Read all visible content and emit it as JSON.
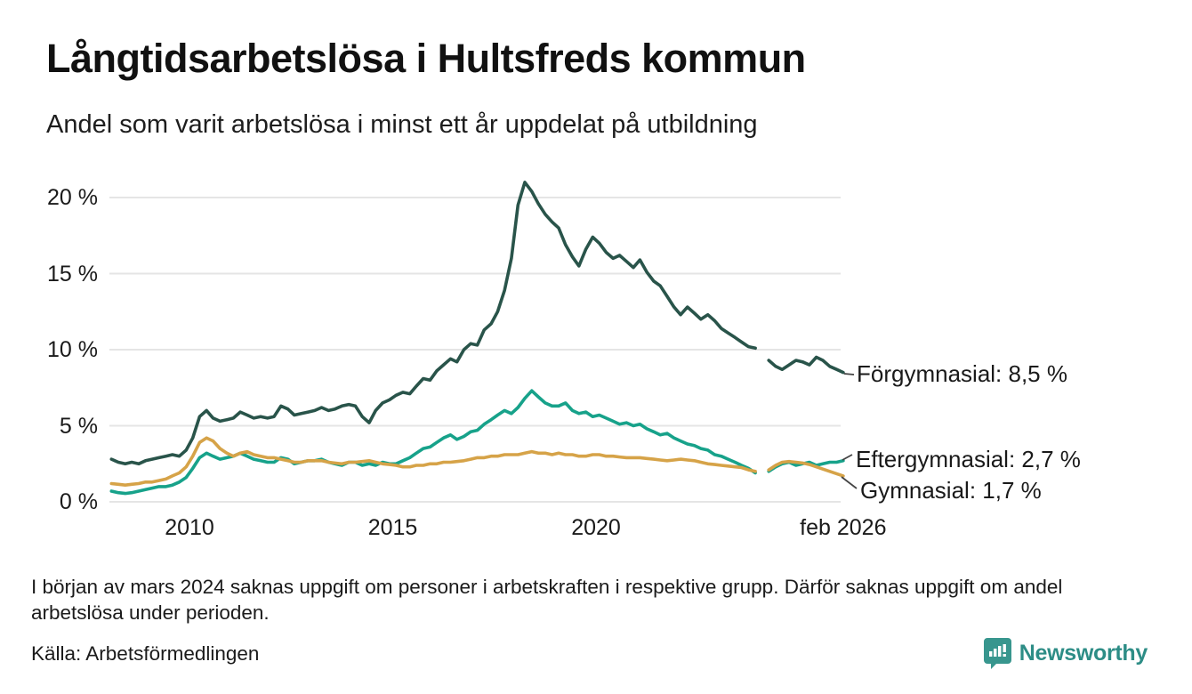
{
  "header": {
    "title": "Långtidsarbetslösa i Hultsfreds kommun",
    "subtitle": "Andel som varit arbetslösa i minst ett år uppdelat på utbildning"
  },
  "footer": {
    "note": "I början av mars 2024 saknas uppgift om personer i arbetskraften i respektive grupp. Därför saknas uppgift om andel arbetslösa under perioden.",
    "source": "Källa: Arbetsförmedlingen",
    "brand": "Newsworthy"
  },
  "colors": {
    "forgymnasial": "#29544a",
    "eftergymnasial": "#17a28a",
    "gymnasial": "#d6a348",
    "grid": "#e5e5e5",
    "connector": "#444444",
    "brand_teal": "#38968e",
    "brand_text": "#2d8d86"
  },
  "chart_data": {
    "type": "line",
    "title": "Långtidsarbetslösa i Hultsfreds kommun",
    "subtitle": "Andel som varit arbetslösa i minst ett år uppdelat på utbildning",
    "grid": "horizontal-only",
    "legend_position": "right-end-annotations",
    "note": "Gap in all series around mars 2024 (missing data)",
    "y_axis": {
      "unit": "%",
      "min": 0,
      "max": 21.5,
      "ticks": [
        {
          "value": 0,
          "label": "0 %"
        },
        {
          "value": 5,
          "label": "5 %"
        },
        {
          "value": 10,
          "label": "10 %"
        },
        {
          "value": 15,
          "label": "15 %"
        },
        {
          "value": 20,
          "label": "20 %"
        }
      ]
    },
    "x_axis": {
      "range_years": [
        2008.08,
        2026.08
      ],
      "ticks": [
        {
          "value": 2010,
          "label": "2010"
        },
        {
          "value": 2015,
          "label": "2015"
        },
        {
          "value": 2020,
          "label": "2020"
        },
        {
          "value": 2026.08,
          "label": "feb 2026"
        }
      ]
    },
    "x": [
      2008.08,
      2008.25,
      2008.42,
      2008.58,
      2008.75,
      2008.92,
      2009.08,
      2009.25,
      2009.42,
      2009.58,
      2009.75,
      2009.92,
      2010.08,
      2010.25,
      2010.42,
      2010.58,
      2010.75,
      2010.92,
      2011.08,
      2011.25,
      2011.42,
      2011.58,
      2011.75,
      2011.92,
      2012.08,
      2012.25,
      2012.42,
      2012.58,
      2012.75,
      2012.92,
      2013.08,
      2013.25,
      2013.42,
      2013.58,
      2013.75,
      2013.92,
      2014.08,
      2014.25,
      2014.42,
      2014.58,
      2014.75,
      2014.92,
      2015.08,
      2015.25,
      2015.42,
      2015.58,
      2015.75,
      2015.92,
      2016.08,
      2016.25,
      2016.42,
      2016.58,
      2016.75,
      2016.92,
      2017.08,
      2017.25,
      2017.42,
      2017.58,
      2017.75,
      2017.92,
      2018.08,
      2018.25,
      2018.42,
      2018.58,
      2018.75,
      2018.92,
      2019.08,
      2019.25,
      2019.42,
      2019.58,
      2019.75,
      2019.92,
      2020.08,
      2020.25,
      2020.42,
      2020.58,
      2020.75,
      2020.92,
      2021.08,
      2021.25,
      2021.42,
      2021.58,
      2021.75,
      2021.92,
      2022.08,
      2022.25,
      2022.42,
      2022.58,
      2022.75,
      2022.92,
      2023.08,
      2023.25,
      2023.42,
      2023.58,
      2023.75,
      2023.92,
      2024.08,
      2024.25,
      2024.42,
      2024.58,
      2024.75,
      2024.92,
      2025.08,
      2025.25,
      2025.42,
      2025.58,
      2025.75,
      2025.92,
      2026.08
    ],
    "series": [
      {
        "name": "Förgymnasial",
        "end_label": "Förgymnasial: 8,5 %",
        "end_value_text": "8,5 %",
        "color": "#29544a",
        "values": [
          2.8,
          2.6,
          2.5,
          2.6,
          2.5,
          2.7,
          2.8,
          2.9,
          3.0,
          3.1,
          3.0,
          3.4,
          4.2,
          5.6,
          6.0,
          5.5,
          5.3,
          5.4,
          5.5,
          5.9,
          5.7,
          5.5,
          5.6,
          5.5,
          5.6,
          6.3,
          6.1,
          5.7,
          5.8,
          5.9,
          6.0,
          6.2,
          6.0,
          6.1,
          6.3,
          6.4,
          6.3,
          5.6,
          5.2,
          6.0,
          6.5,
          6.7,
          7.0,
          7.2,
          7.1,
          7.6,
          8.1,
          8.0,
          8.6,
          9.0,
          9.4,
          9.2,
          10.0,
          10.4,
          10.3,
          11.3,
          11.7,
          12.5,
          13.9,
          16.0,
          19.5,
          21.0,
          20.4,
          19.6,
          18.9,
          18.4,
          18.0,
          16.9,
          16.1,
          15.5,
          16.6,
          17.4,
          17.0,
          16.4,
          16.0,
          16.2,
          15.8,
          15.4,
          15.9,
          15.1,
          14.5,
          14.2,
          13.5,
          12.8,
          12.3,
          12.8,
          12.4,
          12.0,
          12.3,
          11.9,
          11.4,
          11.1,
          10.8,
          10.5,
          10.2,
          10.1,
          null,
          9.3,
          8.9,
          8.7,
          9.0,
          9.3,
          9.2,
          9.0,
          9.5,
          9.3,
          8.9,
          8.7,
          8.5
        ]
      },
      {
        "name": "Eftergymnasial",
        "end_label": "Eftergymnasial: 2,7 %",
        "end_value_text": "2,7 %",
        "color": "#17a28a",
        "values": [
          0.7,
          0.6,
          0.55,
          0.6,
          0.7,
          0.8,
          0.9,
          1.0,
          1.0,
          1.1,
          1.3,
          1.6,
          2.2,
          2.9,
          3.2,
          3.0,
          2.8,
          2.9,
          3.0,
          3.2,
          3.0,
          2.8,
          2.7,
          2.6,
          2.6,
          2.9,
          2.8,
          2.5,
          2.6,
          2.7,
          2.7,
          2.8,
          2.6,
          2.5,
          2.4,
          2.6,
          2.6,
          2.4,
          2.5,
          2.4,
          2.6,
          2.5,
          2.5,
          2.7,
          2.9,
          3.2,
          3.5,
          3.6,
          3.9,
          4.2,
          4.4,
          4.1,
          4.3,
          4.6,
          4.7,
          5.1,
          5.4,
          5.7,
          6.0,
          5.8,
          6.2,
          6.8,
          7.3,
          6.9,
          6.5,
          6.3,
          6.3,
          6.5,
          6.0,
          5.8,
          5.9,
          5.6,
          5.7,
          5.5,
          5.3,
          5.1,
          5.2,
          5.0,
          5.1,
          4.8,
          4.6,
          4.4,
          4.5,
          4.2,
          4.0,
          3.8,
          3.7,
          3.5,
          3.4,
          3.1,
          3.0,
          2.8,
          2.6,
          2.4,
          2.2,
          1.9,
          null,
          2.0,
          2.3,
          2.5,
          2.6,
          2.4,
          2.5,
          2.6,
          2.4,
          2.5,
          2.6,
          2.6,
          2.7
        ]
      },
      {
        "name": "Gymnasial",
        "end_label": "Gymnasial: 1,7 %",
        "end_value_text": "1,7 %",
        "color": "#d6a348",
        "values": [
          1.2,
          1.15,
          1.1,
          1.15,
          1.2,
          1.3,
          1.3,
          1.4,
          1.5,
          1.7,
          1.9,
          2.3,
          3.0,
          3.9,
          4.2,
          4.0,
          3.5,
          3.2,
          3.0,
          3.2,
          3.3,
          3.1,
          3.0,
          2.9,
          2.9,
          2.8,
          2.7,
          2.6,
          2.6,
          2.7,
          2.7,
          2.7,
          2.6,
          2.55,
          2.5,
          2.6,
          2.6,
          2.65,
          2.7,
          2.6,
          2.5,
          2.45,
          2.4,
          2.3,
          2.3,
          2.4,
          2.4,
          2.5,
          2.5,
          2.6,
          2.6,
          2.65,
          2.7,
          2.8,
          2.9,
          2.9,
          3.0,
          3.0,
          3.1,
          3.1,
          3.1,
          3.2,
          3.3,
          3.2,
          3.2,
          3.1,
          3.2,
          3.1,
          3.1,
          3.0,
          3.0,
          3.1,
          3.1,
          3.0,
          3.0,
          2.95,
          2.9,
          2.9,
          2.9,
          2.85,
          2.8,
          2.75,
          2.7,
          2.75,
          2.8,
          2.75,
          2.7,
          2.6,
          2.5,
          2.45,
          2.4,
          2.35,
          2.3,
          2.25,
          2.1,
          2.0,
          null,
          2.1,
          2.4,
          2.6,
          2.65,
          2.6,
          2.55,
          2.45,
          2.3,
          2.15,
          2.0,
          1.85,
          1.7
        ]
      }
    ]
  }
}
